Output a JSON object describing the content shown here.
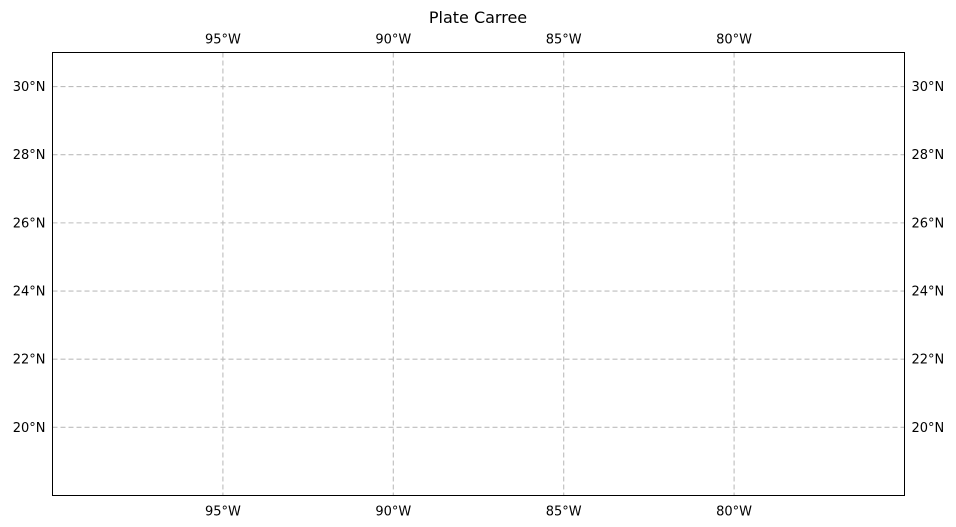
{
  "title": "Plate Carree",
  "map": {
    "projection": "Plate Carree",
    "extent": {
      "lon_min": -100,
      "lon_max": -75,
      "lat_min": 18,
      "lat_max": 31
    },
    "gridlines": {
      "style": "dashed",
      "color": "#bdbdbd",
      "draw_labels": true
    },
    "meridians": [
      {
        "lon": -95,
        "label": "95°W"
      },
      {
        "lon": -90,
        "label": "90°W"
      },
      {
        "lon": -85,
        "label": "85°W"
      },
      {
        "lon": -80,
        "label": "80°W"
      }
    ],
    "parallels": [
      {
        "lat": 30,
        "label": "30°N"
      },
      {
        "lat": 28,
        "label": "28°N"
      },
      {
        "lat": 26,
        "label": "26°N"
      },
      {
        "lat": 24,
        "label": "24°N"
      },
      {
        "lat": 22,
        "label": "22°N"
      },
      {
        "lat": 20,
        "label": "20°N"
      }
    ]
  }
}
